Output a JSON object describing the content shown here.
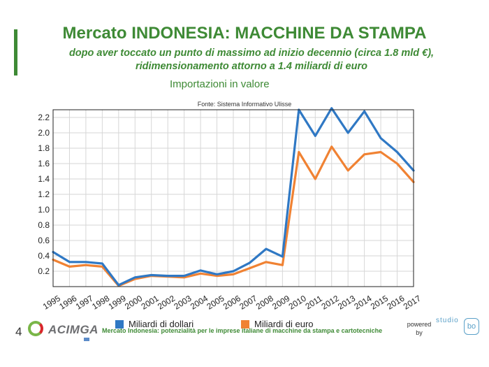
{
  "slide": {
    "title": "Mercato INDONESIA: MACCHINE DA STAMPA",
    "subtitle_line1": "dopo aver toccato un punto di massimo ad inizio decennio (circa 1.8 mld €),",
    "subtitle_line2": "ridimensionamento attorno a 1.4 miliardi di euro",
    "chart_heading": "Importazioni in valore",
    "page_number": "4",
    "footer_text": "Mercato Indonesia: potenzialità per le imprese italiane di macchine da stampa e cartotecniche",
    "logo_text": "ACIMGA",
    "powered_line1": "powered",
    "powered_line2": "by",
    "studio_text": "studio",
    "studio_box": "bo",
    "accent_color": "#3e8a35"
  },
  "chart_data": {
    "type": "line",
    "title": "Fonte: Sistema Informativo Ulisse",
    "x": [
      "1995",
      "1996",
      "1997",
      "1998",
      "1999",
      "2000",
      "2001",
      "2002",
      "2003",
      "2004",
      "2005",
      "2006",
      "2007",
      "2008",
      "2009",
      "2010",
      "2011",
      "2012",
      "2013",
      "2014",
      "2015",
      "2016",
      "2017"
    ],
    "ylim": [
      0,
      2.3
    ],
    "yticks": [
      "0.2",
      "0.4",
      "0.6",
      "0.8",
      "1.0",
      "1.2",
      "1.4",
      "1.6",
      "1.8",
      "2.0",
      "2.2"
    ],
    "grid": true,
    "legend_position": "bottom",
    "series": [
      {
        "name": "Miliardi di dollari",
        "color": "#2f78c4",
        "values": [
          0.45,
          0.32,
          0.32,
          0.3,
          0.02,
          0.12,
          0.15,
          0.14,
          0.14,
          0.21,
          0.16,
          0.2,
          0.31,
          0.49,
          0.39,
          2.3,
          1.96,
          2.32,
          2.0,
          2.28,
          1.93,
          1.75,
          1.51
        ]
      },
      {
        "name": "Miliardi di euro",
        "color": "#f08233",
        "values": [
          0.35,
          0.26,
          0.28,
          0.26,
          0.01,
          0.1,
          0.14,
          0.13,
          0.12,
          0.17,
          0.14,
          0.16,
          0.24,
          0.32,
          0.28,
          1.75,
          1.4,
          1.82,
          1.51,
          1.72,
          1.75,
          1.6,
          1.36
        ]
      }
    ]
  }
}
